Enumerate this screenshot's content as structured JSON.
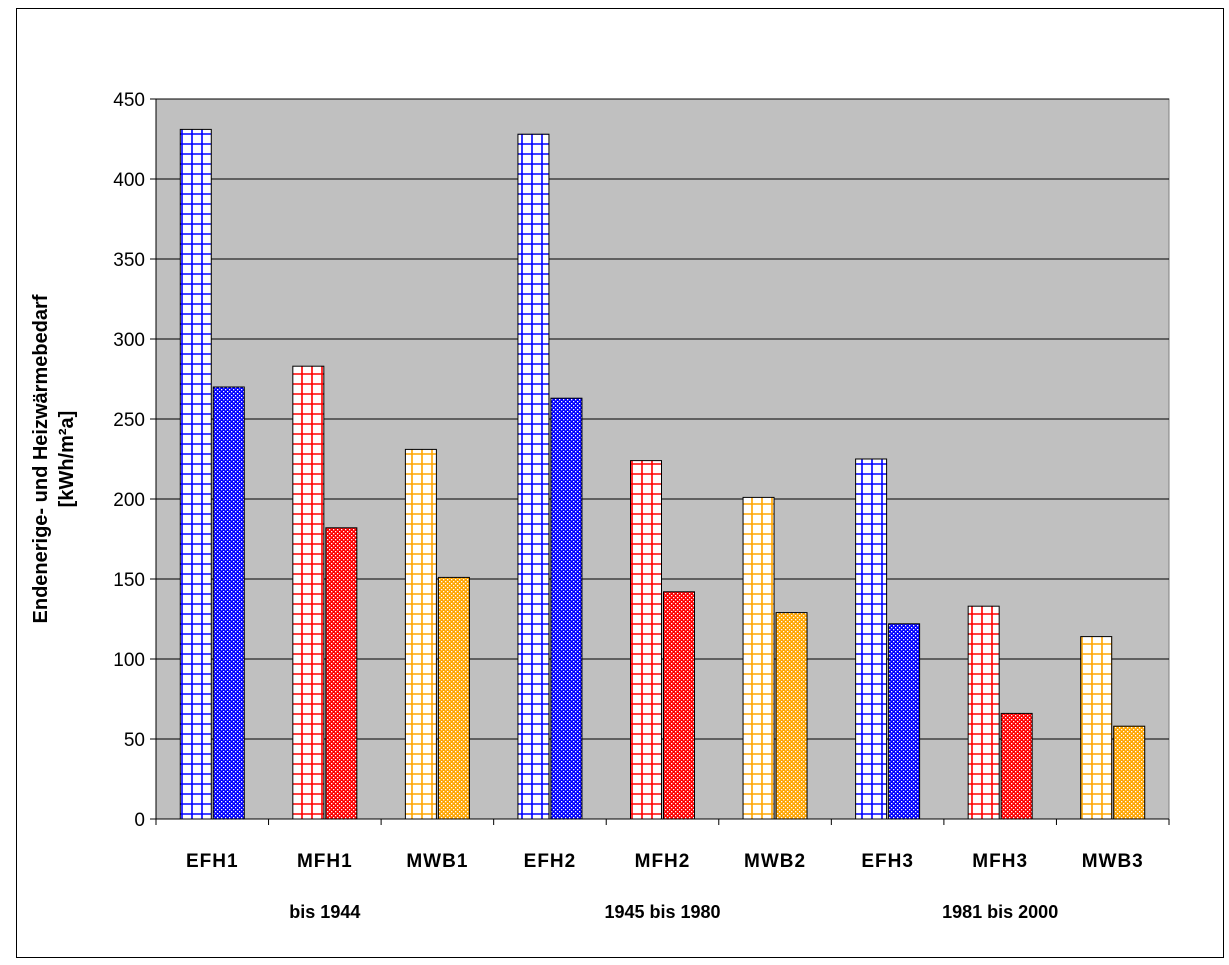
{
  "chart_data": {
    "type": "bar",
    "ylabel_line1": "Endenerige- und Heizwärmebedarf",
    "ylabel_line2": "[kWh/m²a]",
    "ylim": [
      0,
      450
    ],
    "yticks": [
      0,
      50,
      100,
      150,
      200,
      250,
      300,
      350,
      400,
      450
    ],
    "grid": true,
    "legend": "none",
    "categories": [
      "EFH1",
      "MFH1",
      "MWB1",
      "EFH2",
      "MFH2",
      "MWB2",
      "EFH3",
      "MFH3",
      "MWB3"
    ],
    "groups": [
      {
        "label": "bis 1944",
        "from": 0,
        "to": 2
      },
      {
        "label": "1945 bis 1980",
        "from": 3,
        "to": 5
      },
      {
        "label": "1981 bis 2000",
        "from": 6,
        "to": 8
      }
    ],
    "series": [
      {
        "pattern": "grid",
        "values": [
          431,
          283,
          231,
          428,
          224,
          201,
          225,
          133,
          114
        ]
      },
      {
        "pattern": "dots",
        "values": [
          270,
          182,
          151,
          263,
          142,
          129,
          122,
          66,
          58
        ]
      }
    ],
    "category_colors": [
      "#0000ff",
      "#ff0000",
      "#ffa500",
      "#0000ff",
      "#ff0000",
      "#ffa500",
      "#0000ff",
      "#ff0000",
      "#ffa500"
    ],
    "plot_background": "#c0c0c0"
  }
}
